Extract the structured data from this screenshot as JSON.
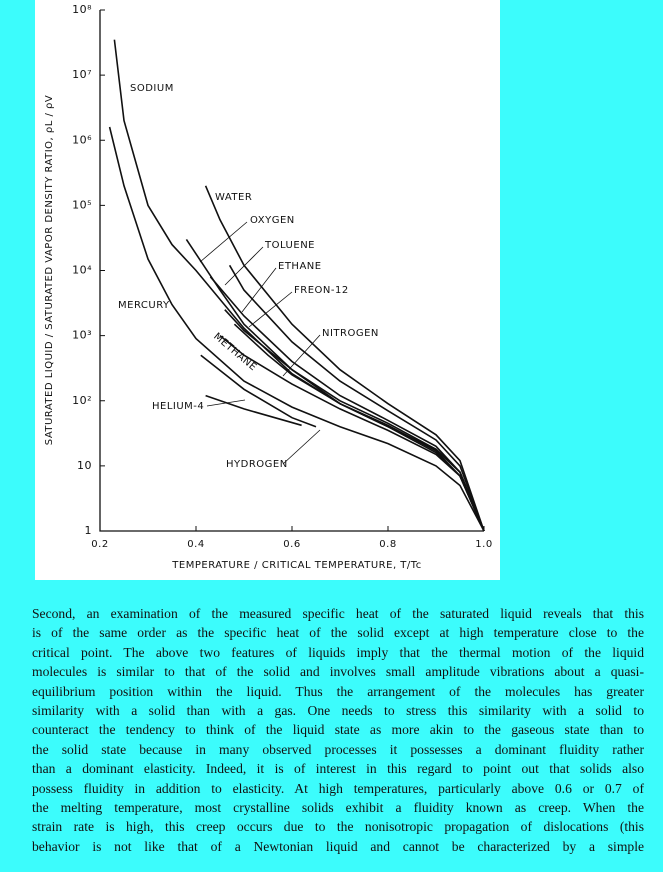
{
  "chart_data": {
    "type": "line",
    "x_label": "TEMPERATURE / CRITICAL TEMPERATURE, T/Tc",
    "y_label": "SATURATED LIQUID / SATURATED VAPOR DENSITY RATIO, ρL / ρV",
    "xlim": [
      0.2,
      1.0
    ],
    "ylim": [
      1,
      100000000
    ],
    "ylog": true,
    "grid": false,
    "line_color": "#111111",
    "xticks": [
      0.2,
      0.4,
      0.6,
      0.8,
      {
        "value": 1,
        "label": "1.0"
      }
    ],
    "yticks": [
      1,
      10,
      {
        "value": 100,
        "label": "10²"
      },
      {
        "value": 1000,
        "label": "10³"
      },
      {
        "value": 10000,
        "label": "10⁴"
      },
      {
        "value": 100000,
        "label": "10⁵"
      },
      {
        "value": 1000000,
        "label": "10⁶"
      },
      {
        "value": 10000000,
        "label": "10⁷"
      },
      {
        "value": 100000000,
        "label": "10⁸"
      }
    ],
    "series": [
      {
        "name": "SODIUM",
        "x": [
          0.23,
          0.25,
          0.3,
          0.35,
          0.4,
          0.5,
          0.6,
          0.7,
          0.8,
          0.9,
          0.95,
          1.0
        ],
        "values": [
          35000000,
          2000000,
          100000,
          25000,
          10000,
          1300,
          260,
          90,
          42,
          17,
          7,
          1
        ]
      },
      {
        "name": "MERCURY",
        "x": [
          0.22,
          0.25,
          0.3,
          0.35,
          0.4,
          0.5,
          0.6,
          0.7,
          0.8,
          0.9,
          0.95,
          1.0
        ],
        "values": [
          1600000,
          200000,
          15000,
          3000,
          900,
          200,
          80,
          40,
          22,
          10,
          5,
          1
        ]
      },
      {
        "name": "WATER",
        "x": [
          0.42,
          0.45,
          0.5,
          0.6,
          0.7,
          0.8,
          0.9,
          0.95,
          1.0
        ],
        "values": [
          200000,
          60000,
          12000,
          1500,
          300,
          90,
          30,
          12,
          1
        ]
      },
      {
        "name": "OXYGEN",
        "x": [
          0.38,
          0.45,
          0.5,
          0.6,
          0.7,
          0.8,
          0.9,
          0.95,
          1.0
        ],
        "values": [
          30000,
          5000,
          1500,
          300,
          90,
          40,
          18,
          8,
          1
        ]
      },
      {
        "name": "TOLUENE",
        "x": [
          0.47,
          0.5,
          0.6,
          0.7,
          0.8,
          0.9,
          0.95,
          1.0
        ],
        "values": [
          12000,
          5000,
          800,
          200,
          70,
          25,
          10,
          1
        ]
      },
      {
        "name": "ETHANE",
        "x": [
          0.43,
          0.5,
          0.6,
          0.7,
          0.8,
          0.9,
          0.95,
          1.0
        ],
        "values": [
          8000,
          2000,
          400,
          120,
          50,
          20,
          8,
          1
        ]
      },
      {
        "name": "FREON-12",
        "x": [
          0.46,
          0.5,
          0.6,
          0.7,
          0.8,
          0.9,
          0.95,
          1.0
        ],
        "values": [
          2500,
          1200,
          300,
          100,
          45,
          18,
          8,
          1
        ]
      },
      {
        "name": "NITROGEN",
        "x": [
          0.48,
          0.55,
          0.6,
          0.7,
          0.8,
          0.9,
          0.95,
          1.0
        ],
        "values": [
          1500,
          500,
          250,
          90,
          40,
          16,
          7,
          1
        ]
      },
      {
        "name": "METHANE",
        "x": [
          0.45,
          0.5,
          0.6,
          0.7,
          0.8,
          0.9,
          0.95,
          1.0
        ],
        "values": [
          1000,
          500,
          180,
          75,
          35,
          15,
          7,
          1
        ]
      },
      {
        "name": "HELIUM-4",
        "x": [
          0.42,
          0.5,
          0.62
        ],
        "values": [
          120,
          75,
          42
        ]
      },
      {
        "name": "HYDROGEN",
        "x": [
          0.41,
          0.5,
          0.6,
          0.65
        ],
        "values": [
          500,
          150,
          55,
          40
        ]
      }
    ]
  },
  "body": {
    "lines": [
      "Second, an examination of the measured specific heat of the saturated liquid reveals that this",
      "is of the same order as the specific heat of the solid except at high temperature close to the",
      "critical point. The above two features of liquids imply that the thermal motion of the liquid",
      "molecules is similar to that of the solid and involves small amplitude vibrations about a quasi-",
      "equilibrium position within the liquid. Thus the arrangement of the molecules has greater",
      "similarity with a solid than with a gas. One needs to stress this similarity with a solid to",
      "counteract the tendency to think of the liquid state as more akin to the gaseous state than to",
      "the solid state because in many observed processes it possesses a dominant fluidity rather",
      "than a dominant elasticity. Indeed, it is of interest in this regard to point out that solids also",
      "possess fluidity in addition to elasticity. At high temperatures, particularly above 0.6 or 0.7 of",
      "the melting temperature, most crystalline solids exhibit a fluidity known as creep. When the",
      "strain rate is high, this creep occurs due to the nonisotropic propagation of dislocations (this",
      "behavior is not like that of a Newtonian liquid and cannot be characterized by a simple"
    ]
  }
}
